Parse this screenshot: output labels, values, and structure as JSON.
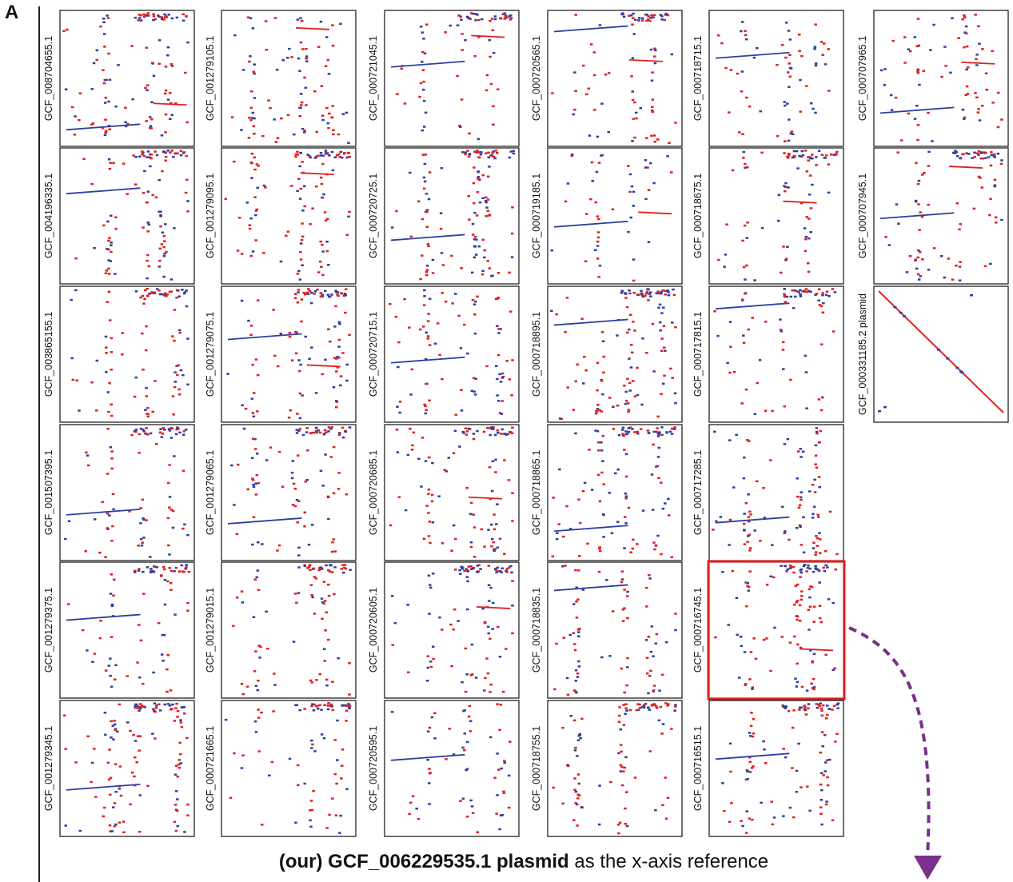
{
  "panel_label": "A",
  "caption": {
    "bold": "(our) GCF_006229535.1 plasmid",
    "rest": " as the x-axis reference"
  },
  "colors": {
    "forward": "#2e3fa0",
    "reverse": "#e02020",
    "highlight": "#e02020",
    "arrow": "#7b2f8c"
  },
  "chart_data": {
    "type": "scatter",
    "description_note": "",
    "columns": [
      [
        "GCF_008704655.1",
        "GCF_004196335.1",
        "GCF_003865155.1",
        "GCF_001507395.1",
        "GCF_001279375.1",
        "GCF_001279345.1"
      ],
      [
        "GCF_001279105.1",
        "GCF_001279095.1",
        "GCF_001279075.1",
        "GCF_001279065.1",
        "GCF_001279015.1",
        "GCF_000721665.1"
      ],
      [
        "GCF_000721045.1",
        "GCF_000720725.1",
        "GCF_000720715.1",
        "GCF_000720685.1",
        "GCF_000720605.1",
        "GCF_000720595.1"
      ],
      [
        "GCF_000720565.1",
        "GCF_000719185.1",
        "GCF_000718895.1",
        "GCF_000718865.1",
        "GCF_000718835.1",
        "GCF_000718755.1"
      ],
      [
        "GCF_000718715.1",
        "GCF_000718675.1",
        "GCF_000717815.1",
        "GCF_000717285.1",
        "GCF_000716745.1",
        "GCF_000716515.1"
      ],
      [
        "GCF_000707965.1",
        "GCF_000707945.1",
        "GCF_000331185.2 plasmid"
      ]
    ],
    "highlighted": "GCF_000716745.1",
    "x_reference": "GCF_006229535.1 plasmid",
    "series": [
      {
        "name": "",
        "color": "#2e3fa0"
      },
      {
        "name": "",
        "color": "#e02020"
      }
    ]
  }
}
